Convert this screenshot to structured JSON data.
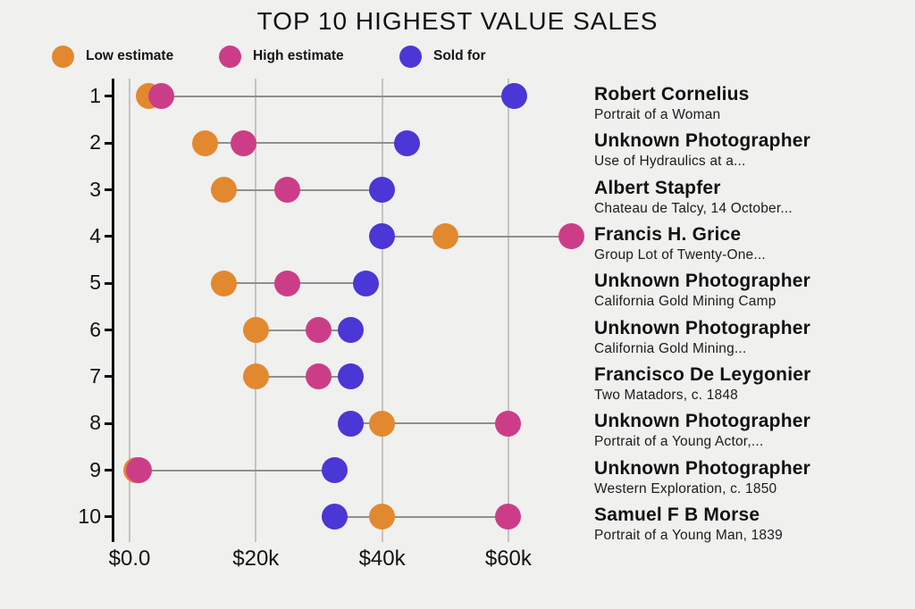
{
  "title": "TOP 10 HIGHEST VALUE SALES",
  "colors": {
    "background": "#f0f0ef",
    "low_estimate": "#e2892f",
    "high_estimate": "#cc3d88",
    "sold_for": "#4b36d6",
    "gridline": "#c3c3c1",
    "connector": "#8f8f8f",
    "axis": "#0c0c0c",
    "text": "#141414"
  },
  "legend": [
    {
      "label": "Low estimate",
      "color": "#e2892f",
      "icon": "low-estimate-dot"
    },
    {
      "label": "High estimate",
      "color": "#cc3d88",
      "icon": "high-estimate-dot"
    },
    {
      "label": "Sold for",
      "color": "#4b36d6",
      "icon": "sold-for-dot"
    }
  ],
  "chart_data": {
    "type": "scatter",
    "subtype": "dumbbell-dot-plot",
    "title": "TOP 10 HIGHEST VALUE SALES",
    "xlabel": "",
    "ylabel": "",
    "grid": "vertical-only",
    "legend_position": "top-left",
    "xlim": [
      -2500,
      75000
    ],
    "x_ticks": [
      {
        "label": "$0.0",
        "value": 0
      },
      {
        "label": "$20k",
        "value": 20000
      },
      {
        "label": "$40k",
        "value": 40000
      },
      {
        "label": "$60k",
        "value": 60000
      }
    ],
    "y_categories": [
      "1",
      "2",
      "3",
      "4",
      "5",
      "6",
      "7",
      "8",
      "9",
      "10"
    ],
    "series_names": [
      "Low estimate",
      "High estimate",
      "Sold for"
    ],
    "rows": [
      {
        "rank": "1",
        "artist": "Robert Cornelius",
        "work": "Portrait of a Woman",
        "low": 3000,
        "high": 5000,
        "sold": 61000
      },
      {
        "rank": "2",
        "artist": "Unknown Photographer",
        "work": "Use of Hydraulics at a...",
        "low": 12000,
        "high": 18000,
        "sold": 44000
      },
      {
        "rank": "3",
        "artist": "Albert Stapfer",
        "work": "Chateau de Talcy, 14 October...",
        "low": 15000,
        "high": 25000,
        "sold": 40000
      },
      {
        "rank": "4",
        "artist": "Francis H. Grice",
        "work": "Group Lot of Twenty-One...",
        "low": 50000,
        "high": 70000,
        "sold": 40000
      },
      {
        "rank": "5",
        "artist": "Unknown Photographer",
        "work": "California Gold Mining Camp",
        "low": 15000,
        "high": 25000,
        "sold": 37500
      },
      {
        "rank": "6",
        "artist": "Unknown Photographer",
        "work": "California Gold Mining...",
        "low": 20000,
        "high": 30000,
        "sold": 35000
      },
      {
        "rank": "7",
        "artist": "Francisco De Leygonier",
        "work": "Two Matadors, c. 1848",
        "low": 20000,
        "high": 30000,
        "sold": 35000
      },
      {
        "rank": "8",
        "artist": "Unknown Photographer",
        "work": "Portrait of a Young Actor,...",
        "low": 40000,
        "high": 60000,
        "sold": 35000
      },
      {
        "rank": "9",
        "artist": "Unknown Photographer",
        "work": "Western Exploration, c. 1850",
        "low": 1000,
        "high": 1500,
        "sold": 32500
      },
      {
        "rank": "10",
        "artist": "Samuel F B Morse",
        "work": "Portrait of a Young Man, 1839",
        "low": 40000,
        "high": 60000,
        "sold": 32500
      }
    ]
  }
}
